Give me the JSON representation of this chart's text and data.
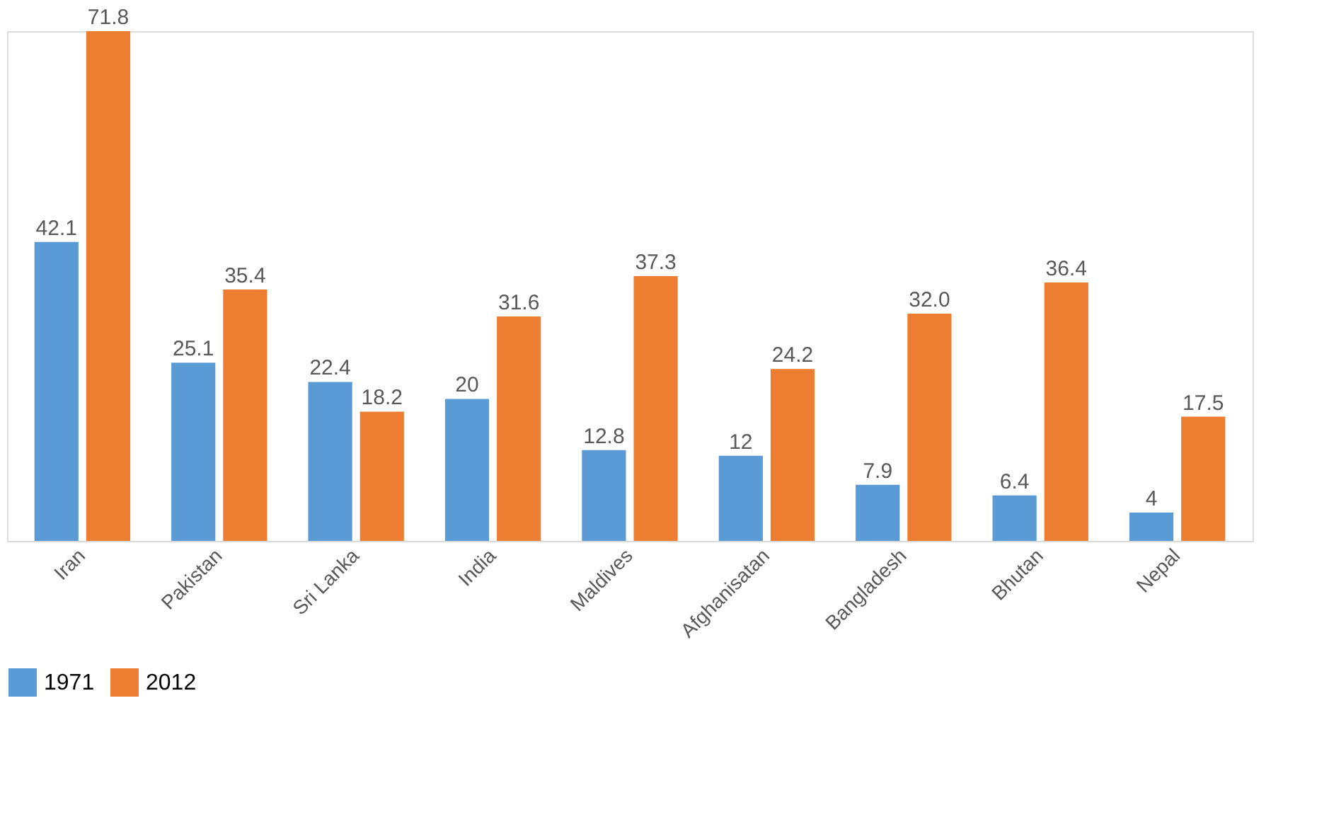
{
  "chart_data": {
    "type": "bar",
    "categories": [
      "Iran",
      "Pakistan",
      "Sri Lanka",
      "India",
      "Maldives",
      "Afghanisatan",
      "Bangladesh",
      "Bhutan",
      "Nepal"
    ],
    "series": [
      {
        "name": "1971",
        "color": "#5b9bd5",
        "values": [
          42.1,
          25.1,
          22.4,
          20,
          12.8,
          12,
          7.9,
          6.4,
          4
        ],
        "value_labels": [
          "42.1",
          "25.1",
          "22.4",
          "20",
          "12.8",
          "12",
          "7.9",
          "6.4",
          "4"
        ]
      },
      {
        "name": "2012",
        "color": "#ed7d31",
        "values": [
          71.8,
          35.4,
          18.2,
          31.6,
          37.3,
          24.2,
          32.0,
          36.4,
          17.5
        ],
        "value_labels": [
          "71.8",
          "35.4",
          "18.2",
          "31.6",
          "37.3",
          "24.2",
          "32.0",
          "36.4",
          "17.5"
        ]
      }
    ],
    "legend": "bottom",
    "grid": false,
    "tick_labels": "x"
  }
}
